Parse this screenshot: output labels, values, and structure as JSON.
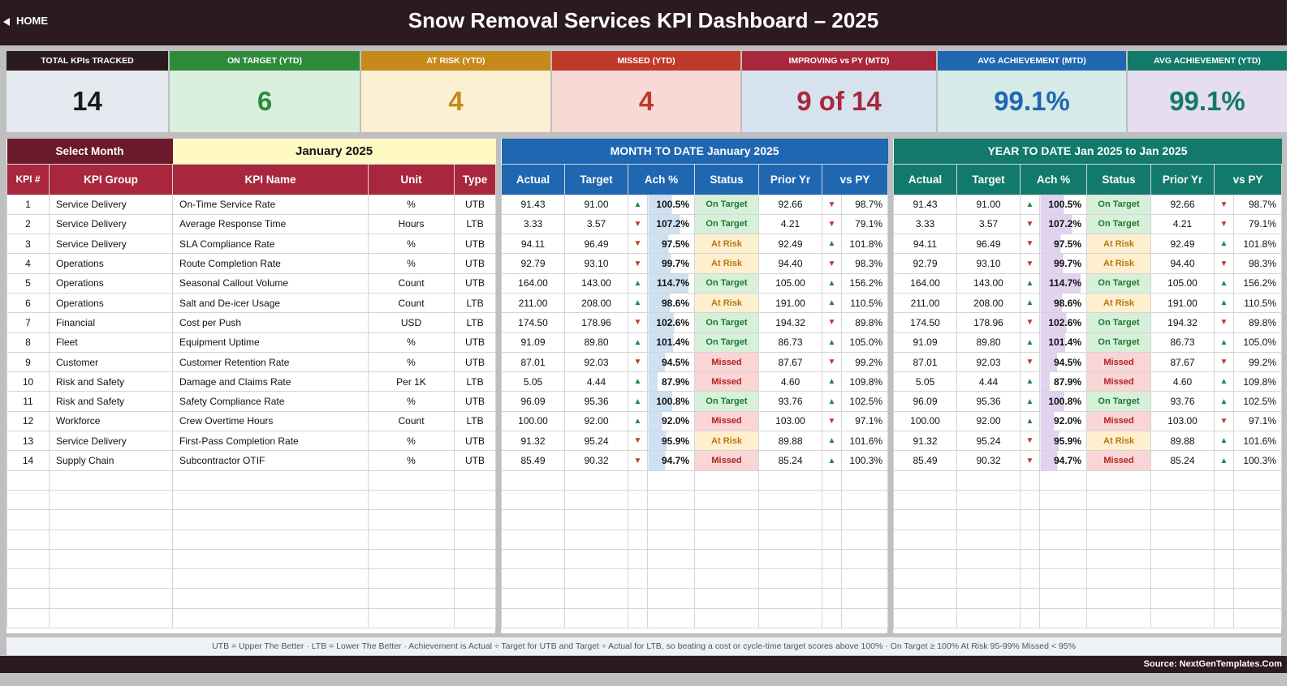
{
  "header": {
    "home_label": "HOME",
    "title": "Snow Removal Services KPI Dashboard   –   2025"
  },
  "cards": [
    {
      "label": "TOTAL KPIs TRACKED",
      "value": "14",
      "header_color": "#2b1a1e",
      "bg_color": "#e4e8ef",
      "value_color": "#1a1a1a"
    },
    {
      "label": "ON TARGET (YTD)",
      "value": "6",
      "header_color": "#2e8b3a",
      "bg_color": "#daf0df",
      "value_color": "#2e8b3a"
    },
    {
      "label": "AT RISK (YTD)",
      "value": "4",
      "header_color": "#c58a1b",
      "bg_color": "#fcefd2",
      "value_color": "#c58a1b"
    },
    {
      "label": "MISSED (YTD)",
      "value": "4",
      "header_color": "#c0392b",
      "bg_color": "#f8d9d6",
      "value_color": "#c0392b"
    },
    {
      "label": "IMPROVING vs PY (MTD)",
      "value": "9 of 14",
      "header_color": "#a8273d",
      "bg_color": "#d6e3ef",
      "value_color": "#a8273d"
    },
    {
      "label": "AVG ACHIEVEMENT (MTD)",
      "value": "99.1%",
      "header_color": "#1f67b1",
      "bg_color": "#d6eae8",
      "value_color": "#1f67b1"
    },
    {
      "label": "AVG ACHIEVEMENT (YTD)",
      "value": "99.1%",
      "header_color": "#117a6b",
      "bg_color": "#e6ddf0",
      "value_color": "#117a6b"
    }
  ],
  "select": {
    "label": "Select Month",
    "value": "January 2025"
  },
  "mtd_title": "MONTH TO DATE      January 2025",
  "ytd_title": "YEAR TO DATE      Jan 2025  to  Jan 2025",
  "colors": {
    "maroon": "#a8273d",
    "maroon_dark": "#6b1a2b",
    "blue": "#1f67b1",
    "teal": "#117a6b",
    "yellow": "#fff9c4"
  },
  "left_headers": [
    "KPI #",
    "KPI Group",
    "KPI Name",
    "Unit",
    "Type"
  ],
  "metric_headers": [
    "Actual",
    "Target",
    "Ach %",
    "Status",
    "Prior Yr",
    "vs PY"
  ],
  "rows": [
    [
      "1",
      "Service Delivery",
      "On-Time Service Rate",
      "%",
      "UTB",
      "91.43",
      "91.00",
      "up",
      "100.5%",
      "On Target",
      "92.66",
      "down",
      "98.7%"
    ],
    [
      "2",
      "Service Delivery",
      "Average Response Time",
      "Hours",
      "LTB",
      "3.33",
      "3.57",
      "down",
      "107.2%",
      "On Target",
      "4.21",
      "down",
      "79.1%"
    ],
    [
      "3",
      "Service Delivery",
      "SLA Compliance Rate",
      "%",
      "UTB",
      "94.11",
      "96.49",
      "down",
      "97.5%",
      "At Risk",
      "92.49",
      "up",
      "101.8%"
    ],
    [
      "4",
      "Operations",
      "Route Completion Rate",
      "%",
      "UTB",
      "92.79",
      "93.10",
      "down",
      "99.7%",
      "At Risk",
      "94.40",
      "down",
      "98.3%"
    ],
    [
      "5",
      "Operations",
      "Seasonal Callout Volume",
      "Count",
      "UTB",
      "164.00",
      "143.00",
      "up",
      "114.7%",
      "On Target",
      "105.00",
      "up",
      "156.2%"
    ],
    [
      "6",
      "Operations",
      "Salt and De-icer Usage",
      "Count",
      "LTB",
      "211.00",
      "208.00",
      "up",
      "98.6%",
      "At Risk",
      "191.00",
      "up",
      "110.5%"
    ],
    [
      "7",
      "Financial",
      "Cost per Push",
      "USD",
      "LTB",
      "174.50",
      "178.96",
      "down",
      "102.6%",
      "On Target",
      "194.32",
      "down",
      "89.8%"
    ],
    [
      "8",
      "Fleet",
      "Equipment Uptime",
      "%",
      "UTB",
      "91.09",
      "89.80",
      "up",
      "101.4%",
      "On Target",
      "86.73",
      "up",
      "105.0%"
    ],
    [
      "9",
      "Customer",
      "Customer Retention Rate",
      "%",
      "UTB",
      "87.01",
      "92.03",
      "down",
      "94.5%",
      "Missed",
      "87.67",
      "down",
      "99.2%"
    ],
    [
      "10",
      "Risk and Safety",
      "Damage and Claims Rate",
      "Per 1K",
      "LTB",
      "5.05",
      "4.44",
      "up",
      "87.9%",
      "Missed",
      "4.60",
      "up",
      "109.8%"
    ],
    [
      "11",
      "Risk and Safety",
      "Safety Compliance Rate",
      "%",
      "UTB",
      "96.09",
      "95.36",
      "up",
      "100.8%",
      "On Target",
      "93.76",
      "up",
      "102.5%"
    ],
    [
      "12",
      "Workforce",
      "Crew Overtime Hours",
      "Count",
      "LTB",
      "100.00",
      "92.00",
      "up",
      "92.0%",
      "Missed",
      "103.00",
      "down",
      "97.1%"
    ],
    [
      "13",
      "Service Delivery",
      "First-Pass Completion Rate",
      "%",
      "UTB",
      "91.32",
      "95.24",
      "down",
      "95.9%",
      "At Risk",
      "89.88",
      "up",
      "101.6%"
    ],
    [
      "14",
      "Supply Chain",
      "Subcontractor OTIF",
      "%",
      "UTB",
      "85.49",
      "90.32",
      "down",
      "94.7%",
      "Missed",
      "85.24",
      "up",
      "100.3%"
    ]
  ],
  "empty_rows": 8,
  "legend_text": "UTB = Upper The Better   ·   LTB = Lower The Better   ·   Achievement is Actual ÷ Target for UTB and Target ÷ Actual for LTB, so beating a cost or cycle-time target scores above 100%   ·   On Target ≥ 100%    At Risk 95-99%    Missed < 95%",
  "source": "Source: NextGenTemplates.Com"
}
